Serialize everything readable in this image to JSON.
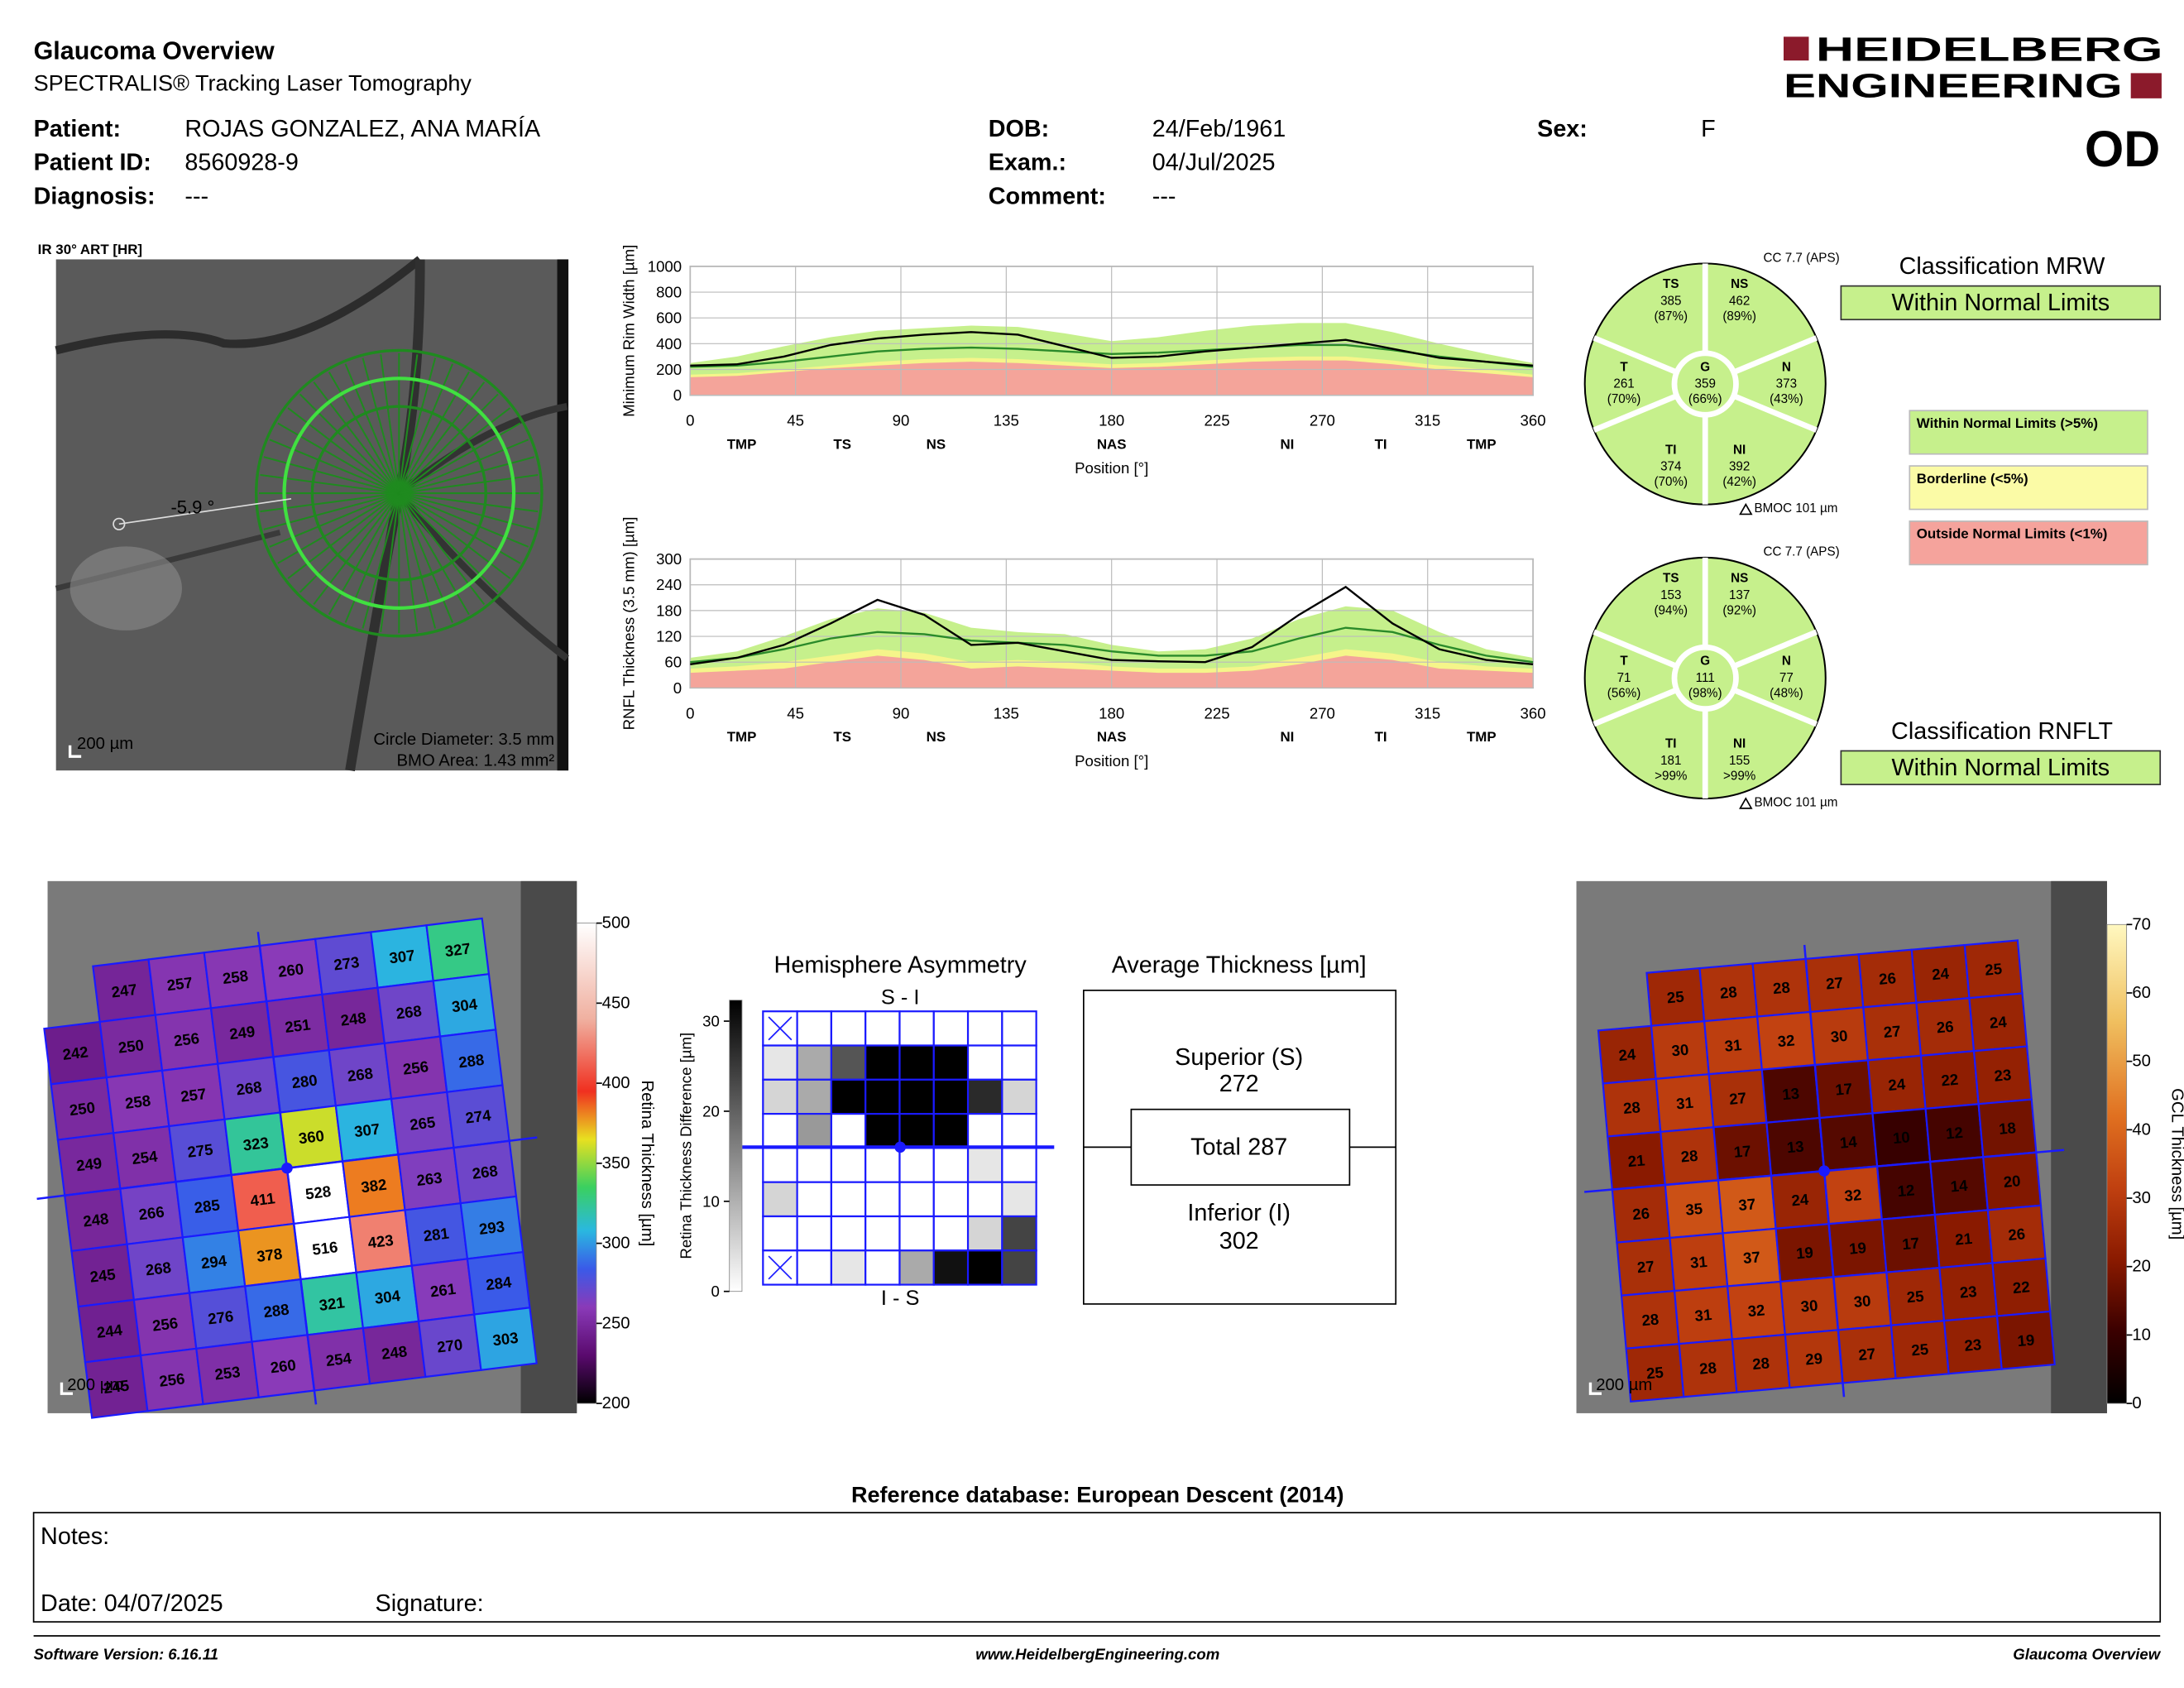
{
  "header": {
    "title": "Glaucoma Overview",
    "subtitle": "SPECTRALIS® Tracking Laser Tomography",
    "logo": [
      "HEIDELBERG",
      "ENGINEERING"
    ],
    "eye": "OD"
  },
  "patient": [
    {
      "label": "Patient:",
      "value": "ROJAS GONZALEZ, ANA MARÍA"
    },
    {
      "label": "Patient ID:",
      "value": "8560928-9"
    },
    {
      "label": "Diagnosis:",
      "value": "---"
    },
    {
      "label": "DOB:",
      "value": "24/Feb/1961"
    },
    {
      "label": "Exam.:",
      "value": "04/Jul/2025"
    },
    {
      "label": "Comment:",
      "value": "---"
    },
    {
      "label": "Sex:",
      "value": "F"
    }
  ],
  "ir_image": {
    "label": "IR 30° ART [HR]",
    "angle": "-5.9 °",
    "scale": "200 µm",
    "circle_diameter": "Circle Diameter: 3.5 mm",
    "bmo_area": "BMO Area: 1.43 mm²"
  },
  "chart_data": [
    {
      "type": "line",
      "y_label": "Minimum Rim Width [µm]",
      "x_label": "Position [°]",
      "x": [
        0,
        20,
        40,
        60,
        80,
        100,
        120,
        140,
        160,
        180,
        200,
        220,
        240,
        260,
        280,
        300,
        320,
        340,
        360
      ],
      "xlim": [
        0,
        360
      ],
      "xticks": [
        0,
        45,
        90,
        135,
        180,
        225,
        270,
        315,
        360
      ],
      "ylim": [
        0,
        1000
      ],
      "yticks": [
        0,
        200,
        400,
        600,
        800,
        1000
      ],
      "sector_labels": [
        "TMP",
        "TS",
        "NS",
        "NAS",
        "NI",
        "TI",
        "TMP"
      ],
      "sector_x": [
        22,
        65,
        105,
        180,
        255,
        295,
        338
      ],
      "areas": [
        {
          "color": "#c6f08c",
          "values": [
            250,
            300,
            380,
            450,
            500,
            520,
            540,
            530,
            480,
            420,
            450,
            500,
            540,
            560,
            560,
            490,
            400,
            320,
            250
          ]
        },
        {
          "color": "#f5f58a",
          "values": [
            160,
            170,
            200,
            230,
            260,
            280,
            290,
            280,
            260,
            240,
            250,
            270,
            290,
            300,
            300,
            270,
            230,
            200,
            160
          ]
        },
        {
          "color": "#f4a49a",
          "values": [
            140,
            150,
            180,
            210,
            230,
            250,
            260,
            250,
            230,
            210,
            220,
            240,
            260,
            270,
            270,
            240,
            200,
            170,
            140
          ]
        }
      ],
      "series": [
        {
          "color": "#2a8a2a",
          "values": [
            220,
            230,
            260,
            300,
            340,
            360,
            370,
            360,
            340,
            320,
            330,
            350,
            370,
            390,
            390,
            350,
            300,
            260,
            220
          ]
        },
        {
          "color": "#000000",
          "values": [
            230,
            240,
            300,
            390,
            440,
            470,
            490,
            470,
            380,
            290,
            300,
            340,
            370,
            400,
            430,
            360,
            290,
            260,
            230
          ]
        }
      ]
    },
    {
      "type": "line",
      "y_label": "RNFL Thickness (3.5 mm) [µm]",
      "x_label": "Position [°]",
      "x": [
        0,
        20,
        40,
        60,
        80,
        100,
        120,
        140,
        160,
        180,
        200,
        220,
        240,
        260,
        280,
        300,
        320,
        340,
        360
      ],
      "xlim": [
        0,
        360
      ],
      "xticks": [
        0,
        45,
        90,
        135,
        180,
        225,
        270,
        315,
        360
      ],
      "ylim": [
        0,
        300
      ],
      "yticks": [
        0,
        60,
        120,
        180,
        240,
        300
      ],
      "sector_labels": [
        "TMP",
        "TS",
        "NS",
        "NAS",
        "NI",
        "TI",
        "TMP"
      ],
      "sector_x": [
        22,
        65,
        105,
        180,
        255,
        295,
        338
      ],
      "areas": [
        {
          "color": "#c6f08c",
          "values": [
            70,
            85,
            120,
            160,
            185,
            175,
            140,
            130,
            125,
            100,
            85,
            90,
            115,
            160,
            190,
            180,
            130,
            90,
            70
          ]
        },
        {
          "color": "#f5f58a",
          "values": [
            45,
            50,
            60,
            75,
            90,
            80,
            60,
            65,
            60,
            50,
            45,
            45,
            50,
            70,
            90,
            80,
            60,
            50,
            45
          ]
        },
        {
          "color": "#f4a49a",
          "values": [
            35,
            40,
            45,
            60,
            75,
            65,
            45,
            50,
            45,
            40,
            35,
            35,
            40,
            55,
            75,
            65,
            45,
            40,
            35
          ]
        }
      ],
      "series": [
        {
          "color": "#2a8a2a",
          "values": [
            60,
            70,
            90,
            115,
            130,
            125,
            110,
            105,
            100,
            85,
            75,
            75,
            85,
            115,
            140,
            130,
            100,
            75,
            60
          ]
        },
        {
          "color": "#000000",
          "values": [
            55,
            70,
            100,
            150,
            205,
            170,
            100,
            105,
            85,
            65,
            62,
            60,
            95,
            170,
            235,
            150,
            90,
            65,
            55
          ]
        }
      ]
    }
  ],
  "mrw_sectors": {
    "cc": "CC 7.7 (APS)",
    "bmoc": "BMOC 101 µm",
    "sectors": [
      {
        "name": "T",
        "value": 261,
        "percent": "(70%)"
      },
      {
        "name": "TS",
        "value": 385,
        "percent": "(87%)"
      },
      {
        "name": "NS",
        "value": 462,
        "percent": "(89%)"
      },
      {
        "name": "N",
        "value": 373,
        "percent": "(43%)"
      },
      {
        "name": "NI",
        "value": 392,
        "percent": "(42%)"
      },
      {
        "name": "TI",
        "value": 374,
        "percent": "(70%)"
      },
      {
        "name": "G",
        "value": 359,
        "percent": "(66%)"
      }
    ]
  },
  "rnfl_sectors": {
    "cc": "CC 7.7 (APS)",
    "bmoc": "BMOC 101 µm",
    "sectors": [
      {
        "name": "T",
        "value": 71,
        "percent": "(56%)"
      },
      {
        "name": "TS",
        "value": 153,
        "percent": "(94%)"
      },
      {
        "name": "NS",
        "value": 137,
        "percent": "(92%)"
      },
      {
        "name": "N",
        "value": 77,
        "percent": "(48%)"
      },
      {
        "name": "NI",
        "value": 155,
        "percent": ">99%"
      },
      {
        "name": "TI",
        "value": 181,
        "percent": ">99%"
      },
      {
        "name": "G",
        "value": 111,
        "percent": "(98%)"
      }
    ]
  },
  "classification": {
    "mrw": {
      "title": "Classification MRW",
      "result": "Within Normal Limits"
    },
    "rnflt": {
      "title": "Classification RNFLT",
      "result": "Within Normal Limits"
    },
    "legend": [
      {
        "label": "Within Normal Limits (>5%)",
        "color": "#c6f08c"
      },
      {
        "label": "Borderline (<5%)",
        "color": "#fbfba6"
      },
      {
        "label": "Outside Normal Limits (<1%)",
        "color": "#f5a39c"
      }
    ]
  },
  "retina_map": {
    "colorbar_label": "Retina  Thickness [µm]",
    "clim": [
      200,
      500
    ],
    "cticks": [
      200,
      250,
      300,
      350,
      400,
      450,
      500
    ],
    "scale": "200 µm",
    "grid": [
      [
        null,
        247,
        257,
        258,
        260,
        273,
        307,
        327
      ],
      [
        242,
        250,
        256,
        249,
        251,
        248,
        268,
        304
      ],
      [
        250,
        258,
        257,
        268,
        280,
        268,
        256,
        288
      ],
      [
        249,
        254,
        275,
        323,
        360,
        307,
        265,
        274
      ],
      [
        248,
        266,
        285,
        411,
        528,
        382,
        263,
        268
      ],
      [
        245,
        268,
        294,
        378,
        516,
        423,
        281,
        293
      ],
      [
        244,
        256,
        276,
        288,
        321,
        304,
        261,
        284
      ],
      [
        245,
        256,
        253,
        260,
        254,
        248,
        270,
        303
      ]
    ]
  },
  "hemisphere": {
    "title": "Hemisphere Asymmetry",
    "y_label": "Retina Thickness Difference [µm]",
    "top": "S - I",
    "bottom": "I - S",
    "ylim": [
      0,
      30
    ],
    "yticks": [
      0,
      10,
      20,
      30
    ],
    "grid": [
      [
        null,
        0,
        0,
        0,
        0,
        0,
        0,
        0
      ],
      [
        3,
        10,
        20,
        30,
        30,
        30,
        0,
        0
      ],
      [
        5,
        10,
        30,
        30,
        30,
        30,
        25,
        5
      ],
      [
        0,
        12,
        0,
        30,
        30,
        30,
        0,
        0
      ],
      [
        0,
        0,
        0,
        0,
        0,
        0,
        3,
        0
      ],
      [
        5,
        0,
        0,
        0,
        0,
        0,
        0,
        3
      ],
      [
        0,
        0,
        0,
        0,
        0,
        0,
        5,
        22
      ],
      [
        null,
        0,
        3,
        0,
        10,
        28,
        30,
        22
      ]
    ]
  },
  "average": {
    "title": "Average Thickness [µm]",
    "superior": {
      "label": "Superior (S)",
      "value": 272
    },
    "total": {
      "label": "Total",
      "value": 287
    },
    "inferior": {
      "label": "Inferior (I)",
      "value": 302
    }
  },
  "gcl_map": {
    "colorbar_label": "GCL  Thickness [µm]",
    "clim": [
      0,
      70
    ],
    "cticks": [
      0,
      10,
      20,
      30,
      40,
      50,
      60,
      70
    ],
    "scale": "200 µm",
    "grid": [
      [
        null,
        25,
        28,
        28,
        27,
        26,
        24,
        25
      ],
      [
        24,
        30,
        31,
        32,
        30,
        27,
        26,
        24
      ],
      [
        28,
        31,
        27,
        13,
        17,
        24,
        22,
        23
      ],
      [
        21,
        28,
        17,
        13,
        14,
        10,
        12,
        18
      ],
      [
        26,
        35,
        37,
        24,
        32,
        12,
        14,
        20
      ],
      [
        27,
        31,
        37,
        19,
        19,
        17,
        21,
        26
      ],
      [
        28,
        31,
        32,
        30,
        30,
        25,
        23,
        22
      ],
      [
        25,
        28,
        28,
        29,
        27,
        25,
        23,
        19
      ]
    ]
  },
  "footer": {
    "reference": "Reference database: European Descent (2014)",
    "notes": "Notes:",
    "date": "Date: 04/07/2025",
    "signature": "Signature:",
    "software": "Software Version: 6.16.11",
    "url": "www.HeidelbergEngineering.com",
    "report": "Glaucoma Overview"
  }
}
